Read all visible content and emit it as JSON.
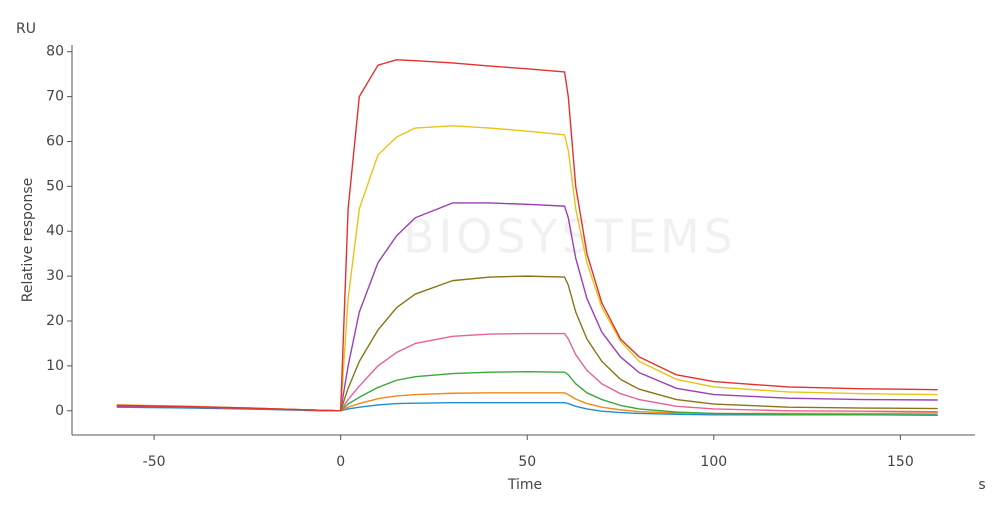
{
  "chart_data": {
    "type": "line",
    "y_unit": "RU",
    "ylabel": "Relative response",
    "xlabel": "Time",
    "x_unit": "s",
    "watermark": "BIOSYSTEMS",
    "xlim": [
      -72,
      170
    ],
    "ylim": [
      -5.4,
      81.5
    ],
    "xticks": [
      -50,
      0,
      50,
      100,
      150
    ],
    "yticks": [
      0,
      10,
      20,
      30,
      40,
      50,
      60,
      70,
      80
    ],
    "x": [
      -60,
      -40,
      -20,
      -5,
      0,
      2,
      5,
      10,
      15,
      20,
      30,
      40,
      50,
      60,
      61,
      63,
      66,
      70,
      75,
      80,
      90,
      100,
      120,
      140,
      160
    ],
    "series": [
      {
        "color": "#1f8fd0",
        "values": [
          0.8,
          0.6,
          0.3,
          0.0,
          0,
          0.4,
          0.8,
          1.3,
          1.6,
          1.7,
          1.8,
          1.8,
          1.8,
          1.8,
          1.6,
          1.0,
          0.4,
          -0.1,
          -0.4,
          -0.6,
          -0.8,
          -0.9,
          -0.9,
          -0.9,
          -0.9
        ]
      },
      {
        "color": "#f08a1c",
        "values": [
          1.3,
          1.0,
          0.5,
          0.1,
          0,
          0.8,
          1.6,
          2.7,
          3.3,
          3.6,
          3.9,
          4.0,
          4.0,
          4.0,
          3.6,
          2.6,
          1.6,
          0.8,
          0.2,
          -0.2,
          -0.5,
          -0.6,
          -0.6,
          -0.6,
          -0.5
        ]
      },
      {
        "color": "#3aa83a",
        "values": [
          1.0,
          0.8,
          0.4,
          0.1,
          0,
          1.5,
          3.0,
          5.2,
          6.8,
          7.6,
          8.3,
          8.6,
          8.7,
          8.6,
          8.0,
          6.0,
          4.0,
          2.5,
          1.2,
          0.4,
          -0.3,
          -0.6,
          -0.8,
          -0.9,
          -1.0
        ]
      },
      {
        "color": "#e8609a",
        "values": [
          1.0,
          0.8,
          0.4,
          0.1,
          0,
          2.5,
          5.5,
          10,
          13,
          15,
          16.6,
          17.1,
          17.2,
          17.2,
          16,
          12.5,
          9,
          6,
          3.8,
          2.5,
          1.0,
          0.4,
          0,
          -0.1,
          -0.2
        ]
      },
      {
        "color": "#8a7514",
        "values": [
          1.0,
          0.8,
          0.4,
          0.1,
          0,
          5,
          11,
          18,
          23,
          26,
          29,
          29.8,
          30,
          29.8,
          28,
          22,
          16,
          11,
          7,
          4.8,
          2.5,
          1.5,
          0.8,
          0.6,
          0.5
        ]
      },
      {
        "color": "#9b3fb5",
        "values": [
          1.0,
          0.8,
          0.4,
          0.1,
          0,
          10,
          22,
          33,
          39,
          43,
          46.3,
          46.3,
          46,
          45.6,
          43,
          34,
          25,
          17.5,
          12,
          8.5,
          5,
          3.6,
          2.8,
          2.5,
          2.4
        ]
      },
      {
        "color": "#e6c419",
        "values": [
          1.2,
          0.9,
          0.5,
          0.1,
          0,
          25,
          45,
          57,
          61,
          63,
          63.5,
          63,
          62.3,
          61.5,
          58,
          45,
          33,
          23,
          15.5,
          11,
          7,
          5.3,
          4.2,
          3.8,
          3.6
        ]
      },
      {
        "color": "#e0322e",
        "values": [
          1.2,
          0.9,
          0.5,
          0.1,
          0,
          45,
          70,
          77,
          78.2,
          78,
          77.5,
          76.8,
          76.2,
          75.5,
          70,
          50,
          35,
          24,
          16,
          12,
          8,
          6.5,
          5.3,
          4.9,
          4.7
        ]
      }
    ]
  }
}
